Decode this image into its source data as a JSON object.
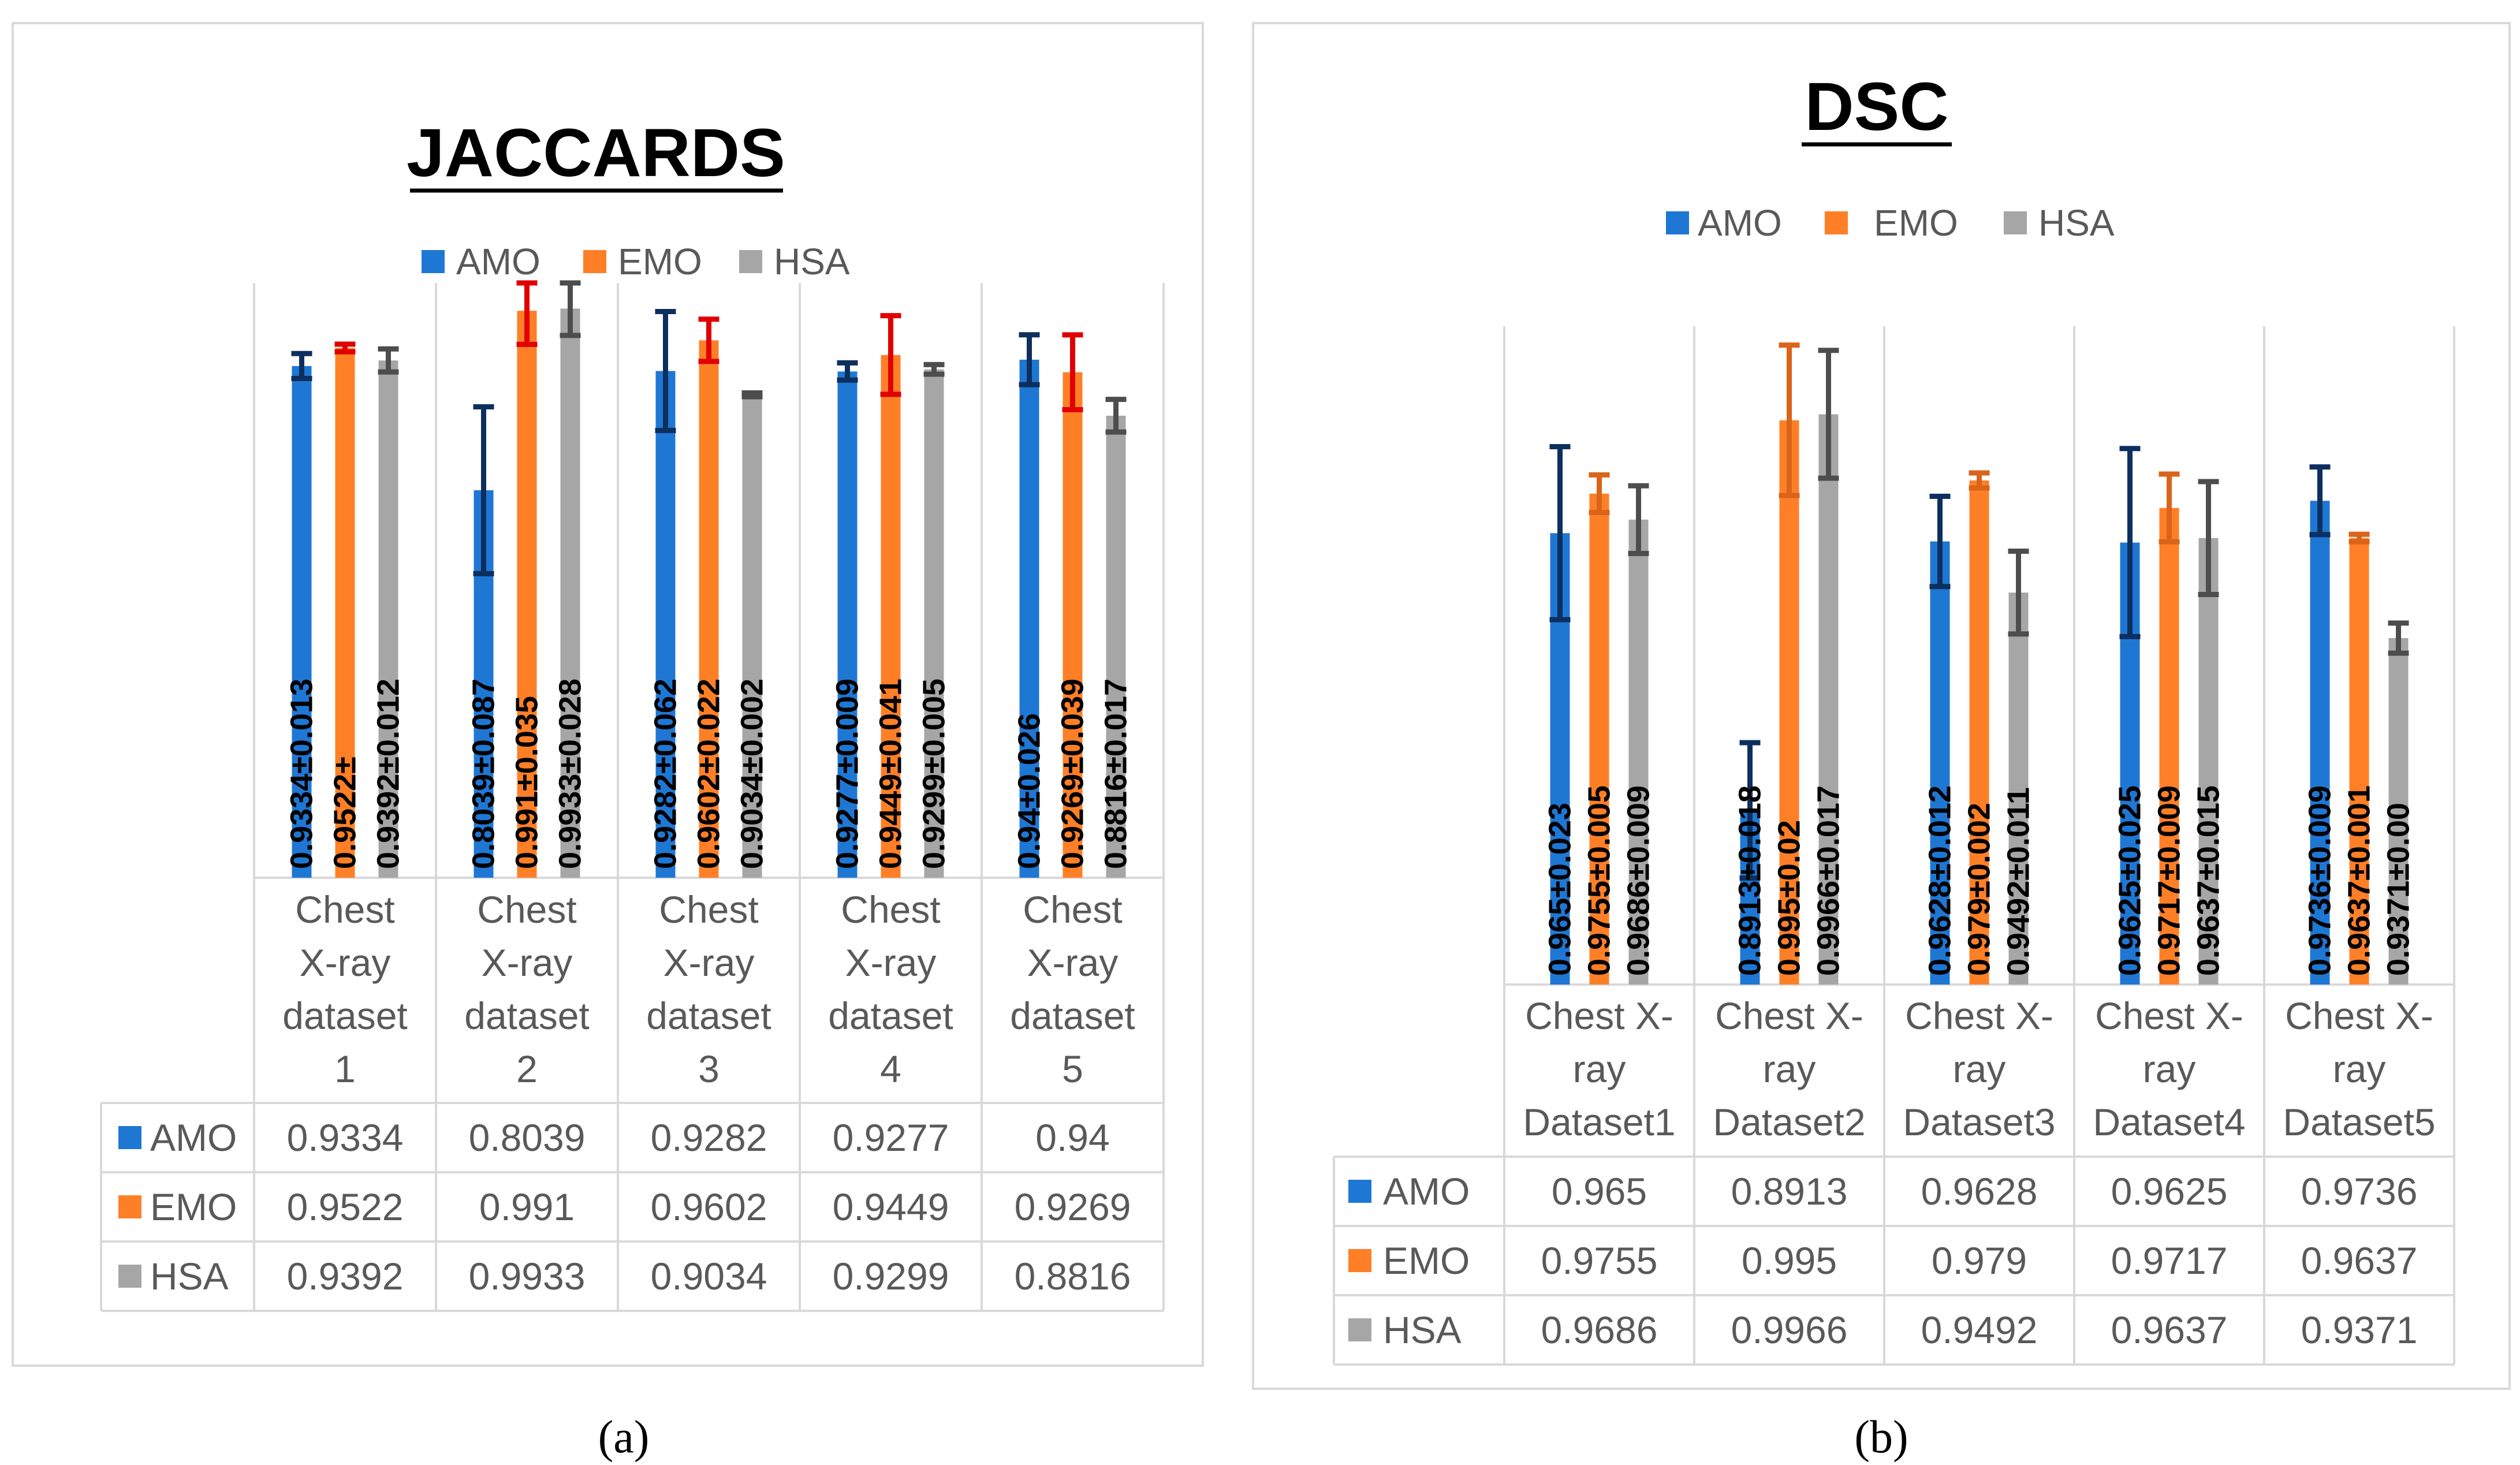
{
  "chart_data": [
    {
      "panel_label": "(a)",
      "type": "bar",
      "title": "JACCARDS",
      "categories": [
        [
          "Chest",
          "X-ray",
          "dataset",
          "1"
        ],
        [
          "Chest",
          "X-ray",
          "dataset",
          "2"
        ],
        [
          "Chest",
          "X-ray",
          "dataset",
          "3"
        ],
        [
          "Chest",
          "X-ray",
          "dataset",
          "4"
        ],
        [
          "Chest",
          "X-ray",
          "dataset",
          "5"
        ]
      ],
      "series": [
        {
          "name": "AMO",
          "color": "#1f77d4",
          "error_color": "#0d2f5e",
          "values": [
            0.9334,
            0.8039,
            0.9282,
            0.9277,
            0.94
          ],
          "errors": [
            0.013,
            0.087,
            0.062,
            0.009,
            0.026
          ],
          "bar_labels": [
            "0.9334±0.013",
            "0.8039±0.087",
            "0.9282±0.062",
            "0.9277±0.009",
            "0.94±0.026"
          ],
          "table_values": [
            "0.9334",
            "0.8039",
            "0.9282",
            "0.9277",
            "0.94"
          ]
        },
        {
          "name": "EMO",
          "color": "#ff7f27",
          "error_color": "#e00000",
          "values": [
            0.9522,
            0.991,
            0.9602,
            0.9449,
            0.9269
          ],
          "errors": [
            0.004,
            0.035,
            0.022,
            0.041,
            0.039
          ],
          "bar_labels": [
            "0.9522±",
            "0.991±0.035",
            "0.9602±0.022",
            "0.9449±0.041",
            "0.9269±0.039"
          ],
          "table_values": [
            "0.9522",
            "0.991",
            "0.9602",
            "0.9449",
            "0.9269"
          ]
        },
        {
          "name": "HSA",
          "color": "#a6a6a6",
          "error_color": "#4d4d4d",
          "values": [
            0.9392,
            0.9933,
            0.9034,
            0.9299,
            0.8816
          ],
          "errors": [
            0.012,
            0.028,
            0.002,
            0.005,
            0.017
          ],
          "bar_labels": [
            "0.9392±0.012",
            "0.9933±0.028",
            "0.9034±0.002",
            "0.9299±0.005",
            "0.8816±0.017"
          ],
          "table_values": [
            "0.9392",
            "0.9933",
            "0.9034",
            "0.9299",
            "0.8816"
          ]
        }
      ],
      "ylim": [
        0.4,
        1.02
      ],
      "grid": true,
      "legend": "top"
    },
    {
      "panel_label": "(b)",
      "type": "bar",
      "title": "DSC",
      "categories": [
        [
          "Chest X-",
          "ray",
          "Dataset1"
        ],
        [
          "Chest X-",
          "ray",
          "Dataset2"
        ],
        [
          "Chest X-",
          "ray",
          "Dataset3"
        ],
        [
          "Chest X-",
          "ray",
          "Dataset4"
        ],
        [
          "Chest X-",
          "ray",
          "Dataset5"
        ]
      ],
      "series": [
        {
          "name": "AMO",
          "color": "#1f77d4",
          "error_color": "#0d2f5e",
          "values": [
            0.965,
            0.8913,
            0.9628,
            0.9625,
            0.9736
          ],
          "errors": [
            0.023,
            0.018,
            0.012,
            0.025,
            0.009
          ],
          "bar_labels": [
            "0.965±0.023",
            "0.8913±0.018",
            "0.9628±0.012",
            "0.9625±0.025",
            "0.9736±0.009"
          ],
          "table_values": [
            "0.965",
            "0.8913",
            "0.9628",
            "0.9625",
            "0.9736"
          ]
        },
        {
          "name": "EMO",
          "color": "#ff7f27",
          "error_color": "#d9641a",
          "values": [
            0.9755,
            0.995,
            0.979,
            0.9717,
            0.9637
          ],
          "errors": [
            0.005,
            0.02,
            0.002,
            0.009,
            0.001
          ],
          "bar_labels": [
            "0.9755±0.005",
            "0.995±0.02",
            "0.979±0.002",
            "0.9717±0.009",
            "0.9637±0.001"
          ],
          "table_values": [
            "0.9755",
            "0.995",
            "0.979",
            "0.9717",
            "0.9637"
          ]
        },
        {
          "name": "HSA",
          "color": "#a6a6a6",
          "error_color": "#4d4d4d",
          "values": [
            0.9686,
            0.9966,
            0.9492,
            0.9637,
            0.9371
          ],
          "errors": [
            0.009,
            0.017,
            0.011,
            0.015,
            0.004
          ],
          "bar_labels": [
            "0.9686±0.009",
            "0.9966±0.017",
            "0.9492±0.011",
            "0.9637±0.015",
            "0.9371±0.00"
          ],
          "table_values": [
            "0.9686",
            "0.9966",
            "0.9492",
            "0.9637",
            "0.9371"
          ]
        }
      ],
      "ylim": [
        0.845,
        1.02
      ],
      "grid": true,
      "legend": "top"
    }
  ]
}
